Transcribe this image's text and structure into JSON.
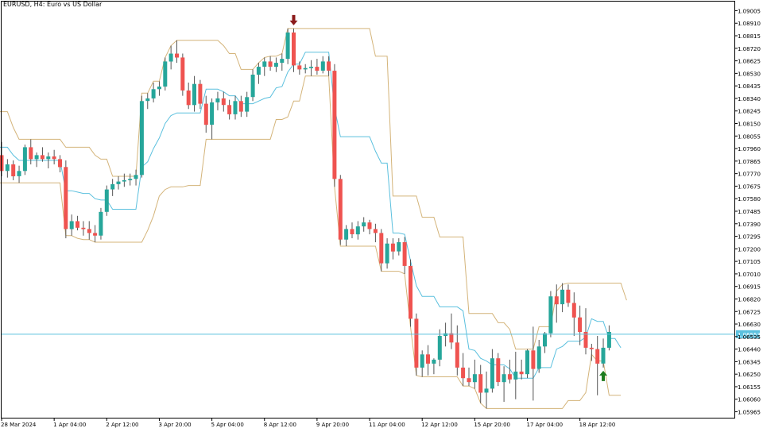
{
  "title": "EURUSD, H4:  Euro vs US Dollar",
  "current_price_label": "1.06553",
  "colors": {
    "bull": "#26a69a",
    "bear": "#ef5350",
    "wick": "#555555",
    "envelope": "#d4b47a",
    "midline": "#5bc0de",
    "price_line": "#5bc0de",
    "axis": "#000000",
    "arrow_down": "#8b1a1a",
    "arrow_up": "#1e7b1e"
  },
  "chart_data": {
    "type": "candlestick",
    "title": "EURUSD, H4:  Euro vs US Dollar",
    "ylim": [
      1.0592,
      1.0908
    ],
    "y_ticks": [
      "1.09005",
      "1.08910",
      "1.08815",
      "1.08720",
      "1.08625",
      "1.08530",
      "1.08435",
      "1.08340",
      "1.08245",
      "1.08150",
      "1.08055",
      "1.07960",
      "1.07865",
      "1.07770",
      "1.07675",
      "1.07580",
      "1.07485",
      "1.07390",
      "1.07295",
      "1.07200",
      "1.07105",
      "1.07010",
      "1.06915",
      "1.06820",
      "1.06725",
      "1.06630",
      "1.06535",
      "1.06440",
      "1.06345",
      "1.06250",
      "1.06155",
      "1.06060",
      "1.05965"
    ],
    "x_ticks": [
      {
        "label": "28 Mar 2024",
        "bar": 0
      },
      {
        "label": "1 Apr 04:00",
        "bar": 9
      },
      {
        "label": "2 Apr 12:00",
        "bar": 18
      },
      {
        "label": "3 Apr 20:00",
        "bar": 27
      },
      {
        "label": "5 Apr 04:00",
        "bar": 36
      },
      {
        "label": "8 Apr 12:00",
        "bar": 45
      },
      {
        "label": "9 Apr 20:00",
        "bar": 54
      },
      {
        "label": "11 Apr 04:00",
        "bar": 63
      },
      {
        "label": "12 Apr 12:00",
        "bar": 72
      },
      {
        "label": "15 Apr 20:00",
        "bar": 81
      },
      {
        "label": "17 Apr 04:00",
        "bar": 90
      },
      {
        "label": "18 Apr 12:00",
        "bar": 99
      }
    ],
    "current_price": 1.06553,
    "ohlc": [
      [
        1.0791,
        1.0801,
        1.0775,
        1.0779
      ],
      [
        1.0779,
        1.0788,
        1.0774,
        1.0784
      ],
      [
        1.0784,
        1.0787,
        1.0772,
        1.0775
      ],
      [
        1.0775,
        1.0783,
        1.077,
        1.0779
      ],
      [
        1.0779,
        1.0799,
        1.0776,
        1.0797
      ],
      [
        1.0797,
        1.0803,
        1.0784,
        1.0788
      ],
      [
        1.0788,
        1.0793,
        1.0782,
        1.0791
      ],
      [
        1.0791,
        1.0797,
        1.0786,
        1.0788
      ],
      [
        1.0788,
        1.0793,
        1.0781,
        1.079
      ],
      [
        1.079,
        1.0795,
        1.0784,
        1.0788
      ],
      [
        1.0788,
        1.0791,
        1.0778,
        1.0782
      ],
      [
        1.0782,
        1.0787,
        1.0728,
        1.0735
      ],
      [
        1.0735,
        1.0746,
        1.073,
        1.0741
      ],
      [
        1.0741,
        1.0745,
        1.0734,
        1.0736
      ],
      [
        1.0736,
        1.0741,
        1.073,
        1.0735
      ],
      [
        1.0735,
        1.0741,
        1.0727,
        1.0732
      ],
      [
        1.0732,
        1.0738,
        1.0725,
        1.073
      ],
      [
        1.073,
        1.0751,
        1.0727,
        1.0748
      ],
      [
        1.0748,
        1.0768,
        1.0745,
        1.0765
      ],
      [
        1.0765,
        1.0773,
        1.076,
        1.0769
      ],
      [
        1.0769,
        1.0775,
        1.0765,
        1.0771
      ],
      [
        1.0771,
        1.0777,
        1.0767,
        1.0772
      ],
      [
        1.0772,
        1.0777,
        1.0768,
        1.0773
      ],
      [
        1.0773,
        1.078,
        1.0768,
        1.0776
      ],
      [
        1.0776,
        1.0836,
        1.0774,
        1.0832
      ],
      [
        1.0832,
        1.0838,
        1.0826,
        1.0834
      ],
      [
        1.0834,
        1.0846,
        1.0831,
        1.0841
      ],
      [
        1.0841,
        1.0847,
        1.0836,
        1.0843
      ],
      [
        1.0843,
        1.0865,
        1.084,
        1.0862
      ],
      [
        1.0862,
        1.0874,
        1.0856,
        1.0868
      ],
      [
        1.0868,
        1.0878,
        1.0861,
        1.0865
      ],
      [
        1.0865,
        1.0868,
        1.0836,
        1.084
      ],
      [
        1.084,
        1.0846,
        1.0826,
        1.0829
      ],
      [
        1.0829,
        1.0851,
        1.0824,
        1.0845
      ],
      [
        1.0845,
        1.0848,
        1.0826,
        1.083
      ],
      [
        1.083,
        1.0836,
        1.0808,
        1.0814
      ],
      [
        1.0814,
        1.0834,
        1.0803,
        1.0831
      ],
      [
        1.0831,
        1.0839,
        1.0825,
        1.0834
      ],
      [
        1.0834,
        1.0839,
        1.0824,
        1.0829
      ],
      [
        1.0829,
        1.0833,
        1.0818,
        1.0822
      ],
      [
        1.0822,
        1.0836,
        1.0818,
        1.0832
      ],
      [
        1.0832,
        1.0836,
        1.082,
        1.0824
      ],
      [
        1.0824,
        1.0839,
        1.082,
        1.0835
      ],
      [
        1.0835,
        1.0856,
        1.0832,
        1.0852
      ],
      [
        1.0852,
        1.0861,
        1.0845,
        1.0858
      ],
      [
        1.0858,
        1.0865,
        1.0851,
        1.0862
      ],
      [
        1.0862,
        1.0866,
        1.0855,
        1.0858
      ],
      [
        1.0858,
        1.0865,
        1.0854,
        1.0861
      ],
      [
        1.0861,
        1.0868,
        1.0855,
        1.0864
      ],
      [
        1.0864,
        1.0887,
        1.086,
        1.0884
      ],
      [
        1.0884,
        1.0887,
        1.0854,
        1.0859
      ],
      [
        1.0859,
        1.0862,
        1.0852,
        1.0856
      ],
      [
        1.0856,
        1.086,
        1.0853,
        1.0857
      ],
      [
        1.0857,
        1.0863,
        1.0851,
        1.0858
      ],
      [
        1.0858,
        1.0864,
        1.0852,
        1.0855
      ],
      [
        1.0855,
        1.0866,
        1.0853,
        1.0862
      ],
      [
        1.0862,
        1.0866,
        1.0851,
        1.0855
      ],
      [
        1.0855,
        1.086,
        1.0767,
        1.0773
      ],
      [
        1.0773,
        1.0776,
        1.0723,
        1.0727
      ],
      [
        1.0727,
        1.0738,
        1.0722,
        1.0735
      ],
      [
        1.0735,
        1.074,
        1.0728,
        1.0731
      ],
      [
        1.0731,
        1.0741,
        1.0727,
        1.0737
      ],
      [
        1.0737,
        1.0744,
        1.0733,
        1.074
      ],
      [
        1.074,
        1.0742,
        1.0731,
        1.0735
      ],
      [
        1.0735,
        1.0739,
        1.0725,
        1.0732
      ],
      [
        1.0732,
        1.0735,
        1.0703,
        1.0709
      ],
      [
        1.0709,
        1.0728,
        1.0705,
        1.0724
      ],
      [
        1.0724,
        1.0728,
        1.0712,
        1.0718
      ],
      [
        1.0718,
        1.0728,
        1.0715,
        1.0725
      ],
      [
        1.0725,
        1.0729,
        1.0701,
        1.0707
      ],
      [
        1.0707,
        1.0712,
        1.0661,
        1.0667
      ],
      [
        1.0667,
        1.0671,
        1.0624,
        1.063
      ],
      [
        1.063,
        1.0643,
        1.0623,
        1.064
      ],
      [
        1.064,
        1.0647,
        1.0624,
        1.0633
      ],
      [
        1.0633,
        1.0637,
        1.0625,
        1.0636
      ],
      [
        1.0636,
        1.0659,
        1.0631,
        1.0654
      ],
      [
        1.0654,
        1.0664,
        1.0646,
        1.0656
      ],
      [
        1.0656,
        1.0671,
        1.0644,
        1.0649
      ],
      [
        1.0649,
        1.0662,
        1.0624,
        1.063
      ],
      [
        1.063,
        1.0641,
        1.0616,
        1.0622
      ],
      [
        1.0622,
        1.063,
        1.0616,
        1.0619
      ],
      [
        1.0619,
        1.0636,
        1.0614,
        1.0625
      ],
      [
        1.0625,
        1.0632,
        1.0603,
        1.0611
      ],
      [
        1.0611,
        1.0627,
        1.0599,
        1.0614
      ],
      [
        1.0614,
        1.0644,
        1.0611,
        1.0637
      ],
      [
        1.0637,
        1.0641,
        1.0616,
        1.0619
      ],
      [
        1.0619,
        1.0631,
        1.0604,
        1.0625
      ],
      [
        1.0625,
        1.0636,
        1.0618,
        1.0621
      ],
      [
        1.0621,
        1.0642,
        1.0606,
        1.0627
      ],
      [
        1.0627,
        1.0636,
        1.0621,
        1.0625
      ],
      [
        1.0625,
        1.0644,
        1.0622,
        1.0643
      ],
      [
        1.0643,
        1.0661,
        1.0605,
        1.0629
      ],
      [
        1.0629,
        1.0651,
        1.0626,
        1.0646
      ],
      [
        1.0646,
        1.0657,
        1.0641,
        1.0656
      ],
      [
        1.0656,
        1.0688,
        1.0653,
        1.0684
      ],
      [
        1.0684,
        1.0693,
        1.0664,
        1.0678
      ],
      [
        1.0678,
        1.0694,
        1.0672,
        1.0689
      ],
      [
        1.0689,
        1.0693,
        1.0676,
        1.0679
      ],
      [
        1.0679,
        1.0687,
        1.0654,
        1.0668
      ],
      [
        1.0668,
        1.0677,
        1.0647,
        1.0657
      ],
      [
        1.0657,
        1.0675,
        1.064,
        1.0645
      ],
      [
        1.0645,
        1.0648,
        1.0635,
        1.0644
      ],
      [
        1.0644,
        1.0654,
        1.0609,
        1.0633
      ],
      [
        1.0633,
        1.0652,
        1.063,
        1.0645
      ],
      [
        1.0645,
        1.0662,
        1.0643,
        1.0657
      ]
    ],
    "envelope_upper": [
      1.0824,
      1.0824,
      1.0812,
      1.0803,
      1.0803,
      1.0803,
      1.0803,
      1.0803,
      1.0803,
      1.0803,
      1.0803,
      1.0797,
      1.0797,
      1.0797,
      1.0797,
      1.0797,
      1.0791,
      1.0788,
      1.0788,
      1.0775,
      1.0775,
      1.0775,
      1.0775,
      1.0775,
      1.0838,
      1.0838,
      1.0847,
      1.0847,
      1.0865,
      1.0874,
      1.0878,
      1.0878,
      1.0878,
      1.0878,
      1.0878,
      1.0878,
      1.0878,
      1.0878,
      1.0874,
      1.0868,
      1.0868,
      1.0856,
      1.0856,
      1.0856,
      1.0861,
      1.0865,
      1.0866,
      1.0866,
      1.0868,
      1.0887,
      1.0887,
      1.0887,
      1.0887,
      1.0887,
      1.0887,
      1.0887,
      1.0887,
      1.0887,
      1.0887,
      1.0887,
      1.0887,
      1.0887,
      1.0887,
      1.0887,
      1.0866,
      1.0866,
      1.0866,
      1.076,
      1.076,
      1.076,
      1.076,
      1.076,
      1.0744,
      1.0744,
      1.0744,
      1.0729,
      1.0729,
      1.0729,
      1.0729,
      1.0729,
      1.0671,
      1.0671,
      1.0671,
      1.0671,
      1.0671,
      1.0664,
      1.0664,
      1.0659,
      1.0644,
      1.0644,
      1.0644,
      1.0644,
      1.0661,
      1.0661,
      1.0661,
      1.0688,
      1.0693,
      1.0694,
      1.0694,
      1.0694,
      1.0694,
      1.0694,
      1.0694,
      1.0694,
      1.0694,
      1.0694,
      1.0694,
      1.0681
    ],
    "envelope_lower": [
      1.077,
      1.077,
      1.077,
      1.077,
      1.077,
      1.077,
      1.077,
      1.077,
      1.077,
      1.077,
      1.077,
      1.073,
      1.073,
      1.0728,
      1.0727,
      1.0727,
      1.0725,
      1.0725,
      1.0725,
      1.0725,
      1.0725,
      1.0725,
      1.0725,
      1.0725,
      1.0725,
      1.0734,
      1.0745,
      1.076,
      1.0765,
      1.0767,
      1.0767,
      1.0767,
      1.0768,
      1.0768,
      1.0768,
      1.0803,
      1.0803,
      1.0803,
      1.0803,
      1.0803,
      1.0803,
      1.0803,
      1.0803,
      1.0803,
      1.0803,
      1.0803,
      1.0803,
      1.0818,
      1.0818,
      1.082,
      1.0832,
      1.0832,
      1.0851,
      1.0851,
      1.0851,
      1.0851,
      1.0851,
      1.0767,
      1.0722,
      1.0722,
      1.0722,
      1.0722,
      1.0722,
      1.0722,
      1.0722,
      1.0703,
      1.0703,
      1.0703,
      1.0703,
      1.0701,
      1.0661,
      1.0624,
      1.0623,
      1.0623,
      1.0623,
      1.0623,
      1.0623,
      1.0623,
      1.0623,
      1.0616,
      1.0616,
      1.0614,
      1.0603,
      1.0599,
      1.0599,
      1.0599,
      1.0599,
      1.0599,
      1.0599,
      1.0599,
      1.0599,
      1.0599,
      1.0599,
      1.0599,
      1.0599,
      1.0599,
      1.0599,
      1.0605,
      1.0605,
      1.0605,
      1.0611,
      1.064,
      1.0635,
      1.0635,
      1.0609,
      1.0609,
      1.0609
    ],
    "midline": [
      1.0797,
      1.0797,
      1.0791,
      1.0787,
      1.0787,
      1.0787,
      1.0787,
      1.0787,
      1.0787,
      1.0787,
      1.0787,
      1.0764,
      1.0764,
      1.0763,
      1.0762,
      1.0762,
      1.0758,
      1.0757,
      1.0757,
      1.075,
      1.075,
      1.075,
      1.075,
      1.075,
      1.0782,
      1.0786,
      1.0796,
      1.0804,
      1.0815,
      1.0821,
      1.0823,
      1.0823,
      1.0823,
      1.0823,
      1.0823,
      1.0841,
      1.0841,
      1.0841,
      1.0839,
      1.0836,
      1.0836,
      1.083,
      1.083,
      1.083,
      1.0832,
      1.0834,
      1.0835,
      1.0842,
      1.0843,
      1.0854,
      1.086,
      1.086,
      1.0869,
      1.0869,
      1.0869,
      1.0869,
      1.0869,
      1.0827,
      1.0805,
      1.0805,
      1.0805,
      1.0805,
      1.0805,
      1.0805,
      1.0794,
      1.0785,
      1.0785,
      1.0732,
      1.0732,
      1.0731,
      1.0711,
      1.0692,
      1.0684,
      1.0684,
      1.0684,
      1.0676,
      1.0676,
      1.0676,
      1.0676,
      1.0673,
      1.0644,
      1.0643,
      1.0637,
      1.0635,
      1.0632,
      1.0632,
      1.0632,
      1.0629,
      1.0622,
      1.0622,
      1.0622,
      1.0622,
      1.063,
      1.063,
      1.063,
      1.0644,
      1.0646,
      1.065,
      1.065,
      1.065,
      1.0653,
      1.0667,
      1.0665,
      1.0665,
      1.0652,
      1.0652,
      1.0645
    ],
    "markers": [
      {
        "type": "sell-arrow",
        "bar": 50
      },
      {
        "type": "buy-arrow",
        "bar": 103
      }
    ]
  }
}
